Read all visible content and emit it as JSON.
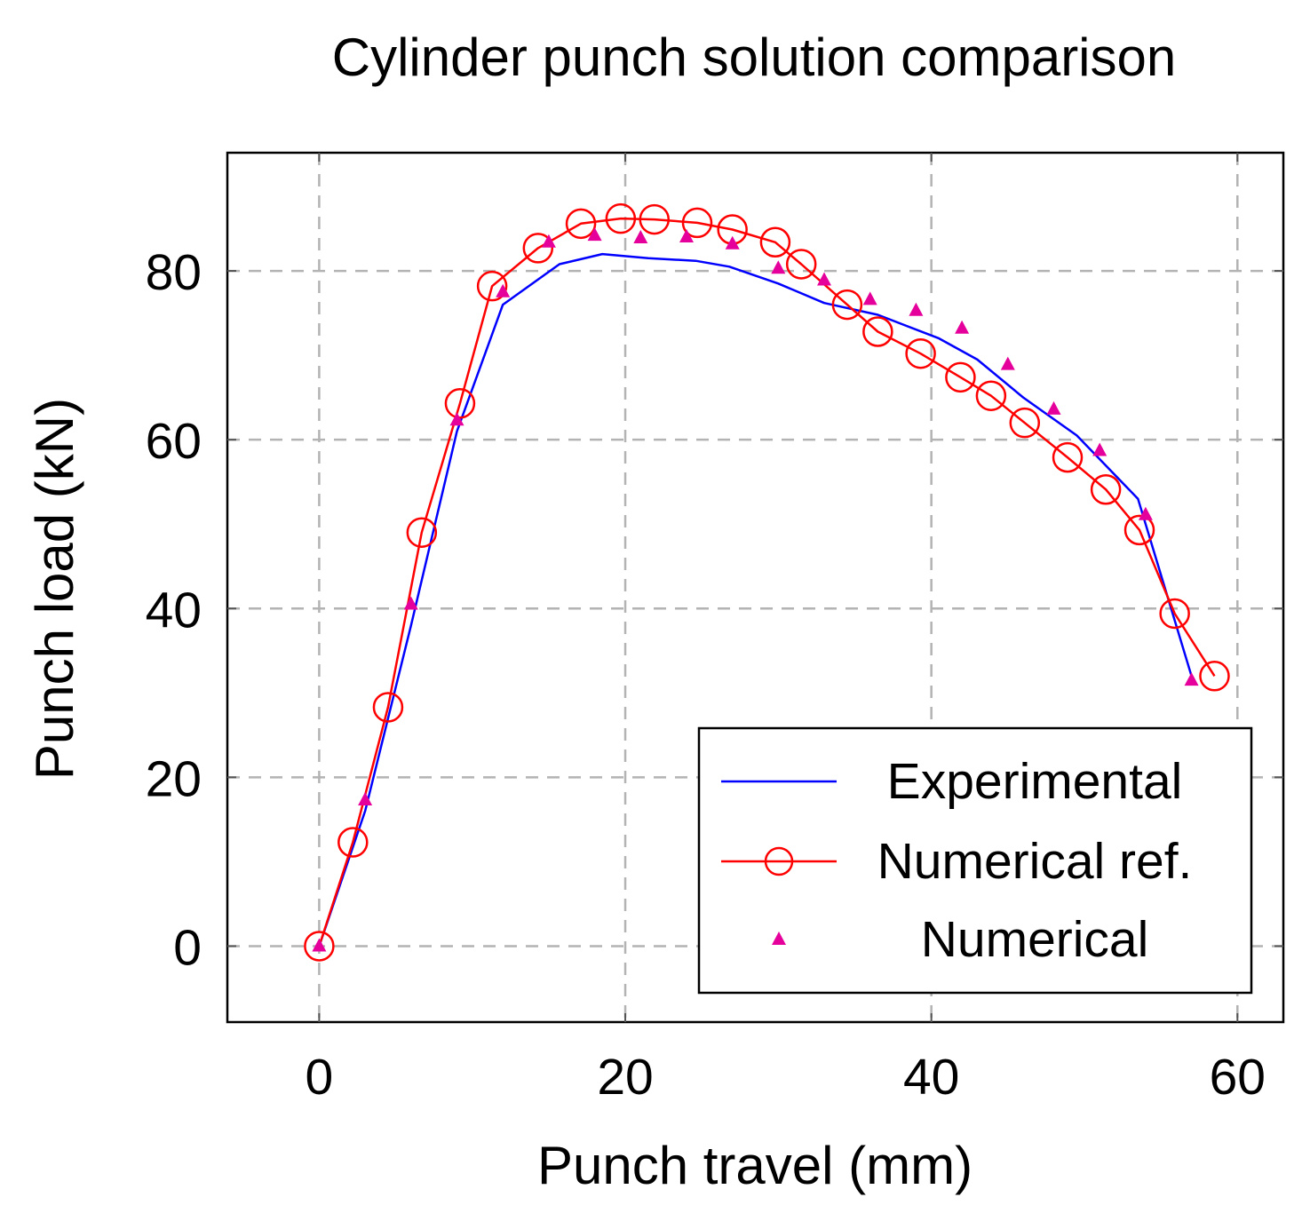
{
  "chart_data": {
    "type": "line",
    "title": "Cylinder punch solution comparison",
    "xlabel": "Punch travel (mm)",
    "ylabel": "Punch load (kN)",
    "xlim": [
      -6,
      63
    ],
    "ylim": [
      -9,
      94
    ],
    "xticks": [
      0,
      20,
      40,
      60
    ],
    "yticks": [
      0,
      20,
      40,
      60,
      80
    ],
    "grid": true,
    "legend_position": "bottom-right",
    "series": [
      {
        "name": "Experimental",
        "style": "line",
        "color": "#0000ff",
        "x": [
          0,
          3,
          6,
          9,
          12,
          15.7,
          18.5,
          21.5,
          24.6,
          26.8,
          30,
          33,
          36.5,
          40.5,
          43,
          46,
          49.5,
          53.5,
          57
        ],
        "y": [
          0,
          16,
          38,
          61,
          76,
          80.8,
          82,
          81.5,
          81.2,
          80.5,
          78.5,
          76.2,
          74.8,
          72,
          69.5,
          65,
          60.5,
          53,
          32
        ]
      },
      {
        "name": "Numerical ref.",
        "style": "line-circle",
        "color": "#ff0000",
        "x": [
          0,
          2.2,
          4.5,
          6.7,
          9.2,
          11.3,
          14.3,
          17.1,
          19.7,
          21.9,
          24.7,
          27,
          29.8,
          31.5,
          34.5,
          36.5,
          39.3,
          41.9,
          43.9,
          46.1,
          48.9,
          51.4,
          53.6,
          55.9,
          58.5
        ],
        "y": [
          0,
          12.3,
          28.3,
          49,
          64.3,
          78.2,
          82.7,
          85.6,
          86.2,
          86.1,
          85.7,
          84.9,
          83.4,
          80.8,
          76,
          72.8,
          70.2,
          67.4,
          65.2,
          62,
          57.9,
          54.1,
          49.3,
          39.4,
          32
        ]
      },
      {
        "name": "Numerical",
        "style": "marker-triangle",
        "color": "#e6009b",
        "x": [
          0,
          3,
          6,
          9,
          12,
          15,
          18,
          21,
          24,
          27,
          30,
          33,
          36,
          39,
          42,
          45,
          48,
          51,
          54,
          57
        ],
        "y": [
          0,
          17.3,
          40.5,
          62.3,
          77.5,
          83.4,
          84.2,
          83.9,
          84,
          83.2,
          80.3,
          78.9,
          76.6,
          75.3,
          73.2,
          68.9,
          63.6,
          58.7,
          51.1,
          31.5
        ]
      }
    ]
  }
}
